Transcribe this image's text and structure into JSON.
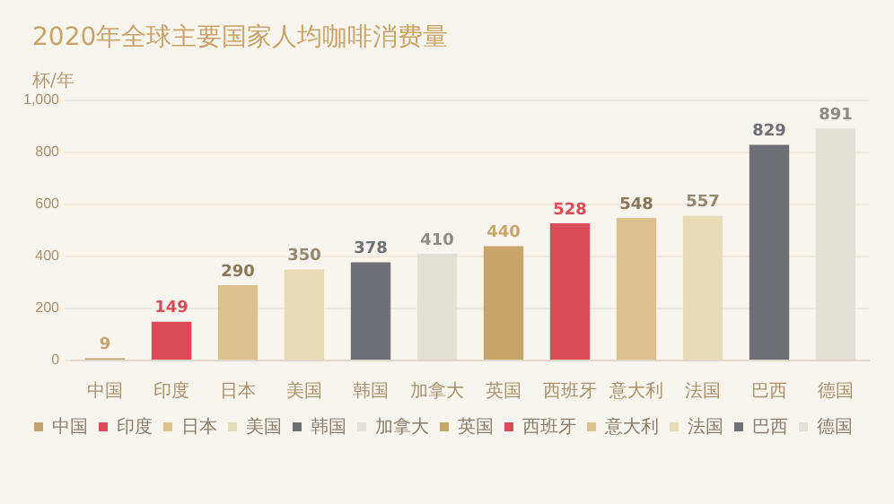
{
  "chart_data": {
    "type": "bar",
    "title": "2020年全球主要国家人均咖啡消费量",
    "ylabel": "杯/年",
    "categories": [
      "中国",
      "印度",
      "日本",
      "美国",
      "韩国",
      "加拿大",
      "英国",
      "西班牙",
      "意大利",
      "法国",
      "巴西",
      "德国"
    ],
    "series": [
      {
        "name": "中国",
        "color": "#c4a46e",
        "values": [
          9,
          null,
          null,
          null,
          null,
          null,
          null,
          null,
          null,
          null,
          null,
          null
        ]
      },
      {
        "name": "印度",
        "color": "#d94c58",
        "values": [
          null,
          149,
          null,
          null,
          null,
          null,
          null,
          null,
          null,
          null,
          null,
          null
        ]
      },
      {
        "name": "日本",
        "color": "#dcc18e",
        "values": [
          null,
          null,
          290,
          null,
          null,
          null,
          null,
          null,
          null,
          null,
          null,
          null
        ]
      },
      {
        "name": "美国",
        "color": "#e8dbb5",
        "values": [
          null,
          null,
          null,
          350,
          null,
          null,
          null,
          null,
          null,
          null,
          null,
          null
        ]
      },
      {
        "name": "韩国",
        "color": "#6f6f76",
        "values": [
          null,
          null,
          null,
          null,
          378,
          null,
          null,
          null,
          null,
          null,
          null,
          null
        ]
      },
      {
        "name": "加拿大",
        "color": "#e3e0d5",
        "values": [
          null,
          null,
          null,
          null,
          null,
          410,
          null,
          null,
          null,
          null,
          null,
          null
        ]
      },
      {
        "name": "英国",
        "color": "#c8a66b",
        "values": [
          null,
          null,
          null,
          null,
          null,
          null,
          440,
          null,
          null,
          null,
          null,
          null
        ]
      },
      {
        "name": "西班牙",
        "color": "#d94c58",
        "values": [
          null,
          null,
          null,
          null,
          null,
          null,
          null,
          528,
          null,
          null,
          null,
          null
        ]
      },
      {
        "name": "意大利",
        "color": "#dcc18e",
        "values": [
          null,
          null,
          null,
          null,
          null,
          null,
          null,
          null,
          548,
          null,
          null,
          null
        ]
      },
      {
        "name": "法国",
        "color": "#e8dbb5",
        "values": [
          null,
          null,
          null,
          null,
          null,
          null,
          null,
          null,
          null,
          557,
          null,
          null
        ]
      },
      {
        "name": "巴西",
        "color": "#6f6f76",
        "values": [
          null,
          null,
          null,
          null,
          null,
          null,
          null,
          null,
          null,
          null,
          829,
          null
        ]
      },
      {
        "name": "德国",
        "color": "#e3e0d5",
        "values": [
          null,
          null,
          null,
          null,
          null,
          null,
          null,
          null,
          null,
          null,
          null,
          891
        ]
      }
    ],
    "ylim": [
      0,
      1000
    ],
    "yticks": [
      0,
      200,
      400,
      600,
      800,
      {
        "value": 1000,
        "label": "1,000"
      }
    ],
    "grid": "y",
    "legend": "bottom",
    "data_labels": true
  }
}
